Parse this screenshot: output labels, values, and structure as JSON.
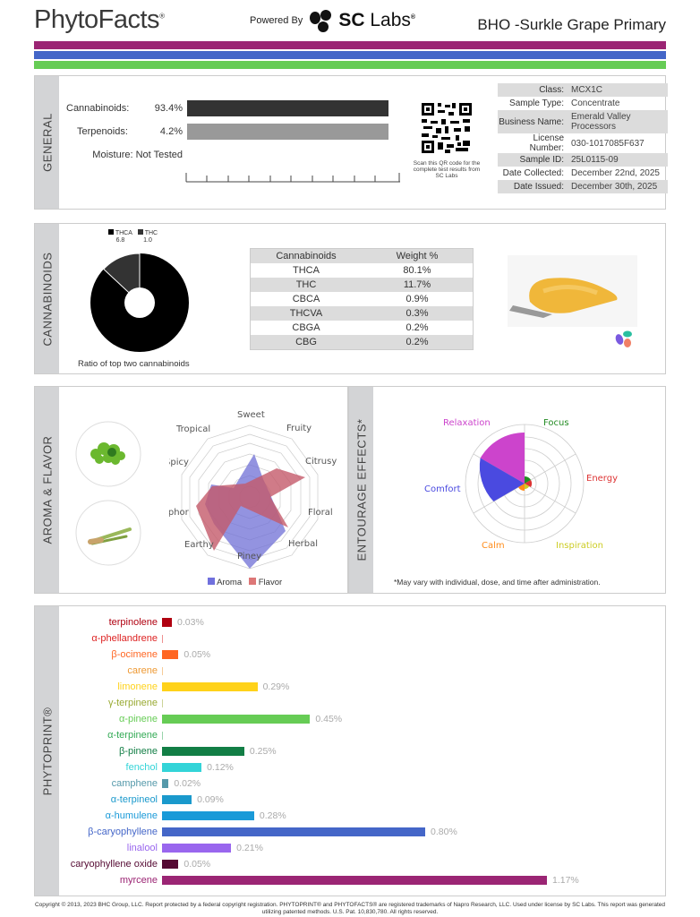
{
  "header": {
    "logo": "PhytoFacts",
    "powered_by": "Powered By",
    "brand_sc": "SC",
    "brand_labs": "Labs",
    "title": "BHO -Surkle Grape Primary"
  },
  "stripes": [
    "#9b2574",
    "#4466c8",
    "#66cc55"
  ],
  "general": {
    "label": "GENERAL",
    "rows": [
      {
        "name": "Cannabinoids:",
        "value": "93.4%",
        "color": "#333333"
      },
      {
        "name": "Terpenoids:",
        "value": "4.2%",
        "color": "#999999"
      },
      {
        "name": "Moisture:",
        "value": "Not Tested"
      }
    ],
    "qr_caption": "Scan this QR code for the complete test results from SC Labs",
    "info": [
      {
        "k": "Class:",
        "v": "MCX1C"
      },
      {
        "k": "Sample Type:",
        "v": "Concentrate"
      },
      {
        "k": "Business Name:",
        "v": "Emerald Valley Processors"
      },
      {
        "k": "License Number:",
        "v": "030-1017085F637"
      },
      {
        "k": "Sample ID:",
        "v": "25L0115-09"
      },
      {
        "k": "Date Collected:",
        "v": "December 22nd, 2025"
      },
      {
        "k": "Date Issued:",
        "v": "December 30th, 2025"
      }
    ]
  },
  "cannabinoids": {
    "label": "CANNABINOIDS",
    "donut_legend": [
      {
        "name": "THCA",
        "ratio": "6.8",
        "color": "#000000"
      },
      {
        "name": "THC",
        "ratio": "1.0",
        "color": "#333333"
      }
    ],
    "donut_caption": "Ratio of top two cannabinoids",
    "table_headers": [
      "Cannabinoids",
      "Weight %"
    ],
    "table_rows": [
      [
        "THCA",
        "80.1%"
      ],
      [
        "THC",
        "11.7%"
      ],
      [
        "CBCA",
        "0.9%"
      ],
      [
        "THCVA",
        "0.3%"
      ],
      [
        "CBGA",
        "0.2%"
      ],
      [
        "CBG",
        "0.2%"
      ]
    ]
  },
  "aroma": {
    "label": "AROMA & FLAVOR",
    "legend": [
      {
        "name": "Aroma",
        "color": "#7070dd"
      },
      {
        "name": "Flavor",
        "color": "#dd7777"
      }
    ]
  },
  "entourage": {
    "label": "ENTOURAGE EFFECTS*",
    "note": "*May vary with individual, dose, and time after administration.",
    "effects": [
      {
        "name": "Focus",
        "color": "#228b22"
      },
      {
        "name": "Energy",
        "color": "#dd3333"
      },
      {
        "name": "Inspiration",
        "color": "#cccc22"
      },
      {
        "name": "Calm",
        "color": "#ff8c1a"
      },
      {
        "name": "Comfort",
        "color": "#4a4ae0"
      },
      {
        "name": "Relaxation",
        "color": "#cc44cc"
      }
    ]
  },
  "phytoprint": {
    "label": "PHYTOPRINT®",
    "terpenes": [
      {
        "name": "terpinolene",
        "value": 0.03,
        "label": "0.03%",
        "color": "#b00010"
      },
      {
        "name": "α-phellandrene",
        "value": 0,
        "label": "",
        "color": "#dd2222"
      },
      {
        "name": "β-ocimene",
        "value": 0.05,
        "label": "0.05%",
        "color": "#ff6622"
      },
      {
        "name": "carene",
        "value": 0,
        "label": "",
        "color": "#ee9933"
      },
      {
        "name": "limonene",
        "value": 0.29,
        "label": "0.29%",
        "color": "#ffd21a"
      },
      {
        "name": "γ-terpinene",
        "value": 0,
        "label": "",
        "color": "#99aa33"
      },
      {
        "name": "α-pinene",
        "value": 0.45,
        "label": "0.45%",
        "color": "#66cc55"
      },
      {
        "name": "α-terpinene",
        "value": 0,
        "label": "",
        "color": "#33aa55"
      },
      {
        "name": "β-pinene",
        "value": 0.25,
        "label": "0.25%",
        "color": "#127e45"
      },
      {
        "name": "fenchol",
        "value": 0.12,
        "label": "0.12%",
        "color": "#33d4d8"
      },
      {
        "name": "camphene",
        "value": 0.02,
        "label": "0.02%",
        "color": "#5599aa"
      },
      {
        "name": "α-terpineol",
        "value": 0.09,
        "label": "0.09%",
        "color": "#1a99cc"
      },
      {
        "name": "α-humulene",
        "value": 0.28,
        "label": "0.28%",
        "color": "#1a9ad8"
      },
      {
        "name": "β-caryophyllene",
        "value": 0.8,
        "label": "0.80%",
        "color": "#4466c8"
      },
      {
        "name": "linalool",
        "value": 0.21,
        "label": "0.21%",
        "color": "#9966ee"
      },
      {
        "name": "caryophyllene oxide",
        "value": 0.05,
        "label": "0.05%",
        "color": "#550a33"
      },
      {
        "name": "myrcene",
        "value": 1.17,
        "label": "1.17%",
        "color": "#9b2574"
      }
    ]
  },
  "footer": "Copyright © 2013, 2023 BHC Group, LLC. Report protected by a federal copyright registration. PHYTOPRINT® and PHYTOFACTS® are registered trademarks of Napro Research, LLC. Used under license by SC Labs. This report was generated utilizing patented methods. U.S. Pat. 10,830,780. All rights reserved."
}
